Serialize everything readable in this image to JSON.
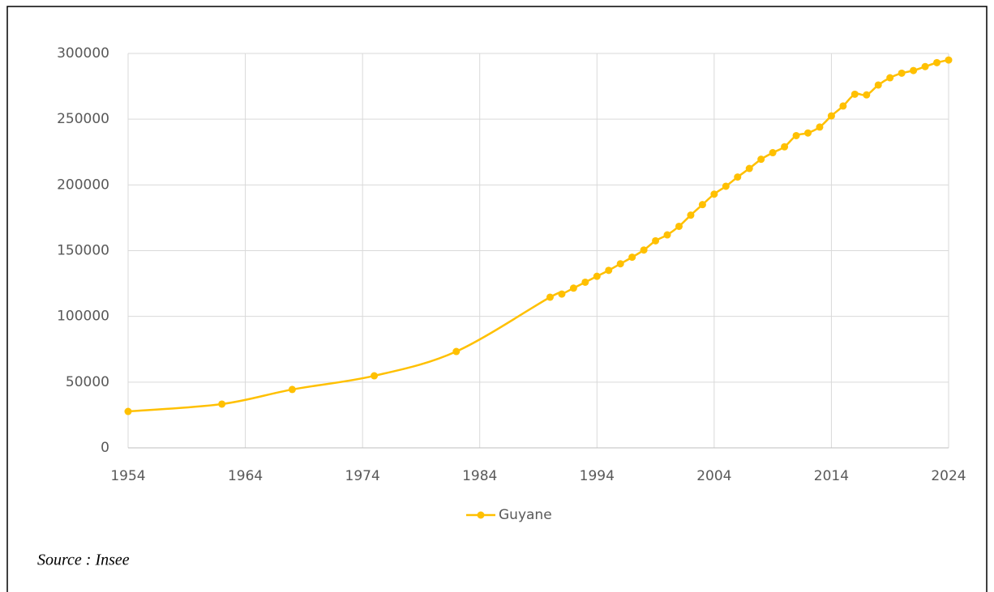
{
  "chart_data": {
    "type": "line",
    "x": [
      1954,
      1962,
      1968,
      1975,
      1982,
      1990,
      1991,
      1992,
      1993,
      1994,
      1995,
      1996,
      1997,
      1998,
      1999,
      2000,
      2001,
      2002,
      2003,
      2004,
      2005,
      2006,
      2007,
      2008,
      2009,
      2010,
      2011,
      2012,
      2013,
      2014,
      2015,
      2016,
      2017,
      2018,
      2019,
      2020,
      2021,
      2022,
      2023,
      2024
    ],
    "series": [
      {
        "name": "Guyane",
        "color": "#FFC000",
        "values": [
          27700,
          33300,
          44400,
          54800,
          73300,
          114600,
          117000,
          121500,
          126000,
          130500,
          135000,
          140000,
          145000,
          150500,
          157500,
          162000,
          168500,
          177000,
          185000,
          193000,
          199000,
          206000,
          212500,
          219500,
          224500,
          229000,
          237500,
          239500,
          244000,
          252500,
          260000,
          269000,
          268500,
          276000,
          281500,
          285000,
          287000,
          290000,
          293000,
          295000
        ]
      }
    ],
    "xlim": [
      1954,
      2024
    ],
    "xticks": [
      1954,
      1964,
      1974,
      1984,
      1994,
      2004,
      2014,
      2024
    ],
    "ylim": [
      0,
      300000
    ],
    "yticks": [
      0,
      50000,
      100000,
      150000,
      200000,
      250000,
      300000
    ],
    "grid": true,
    "legend": "bottom",
    "smooth": true,
    "source": "Source : Insee"
  }
}
